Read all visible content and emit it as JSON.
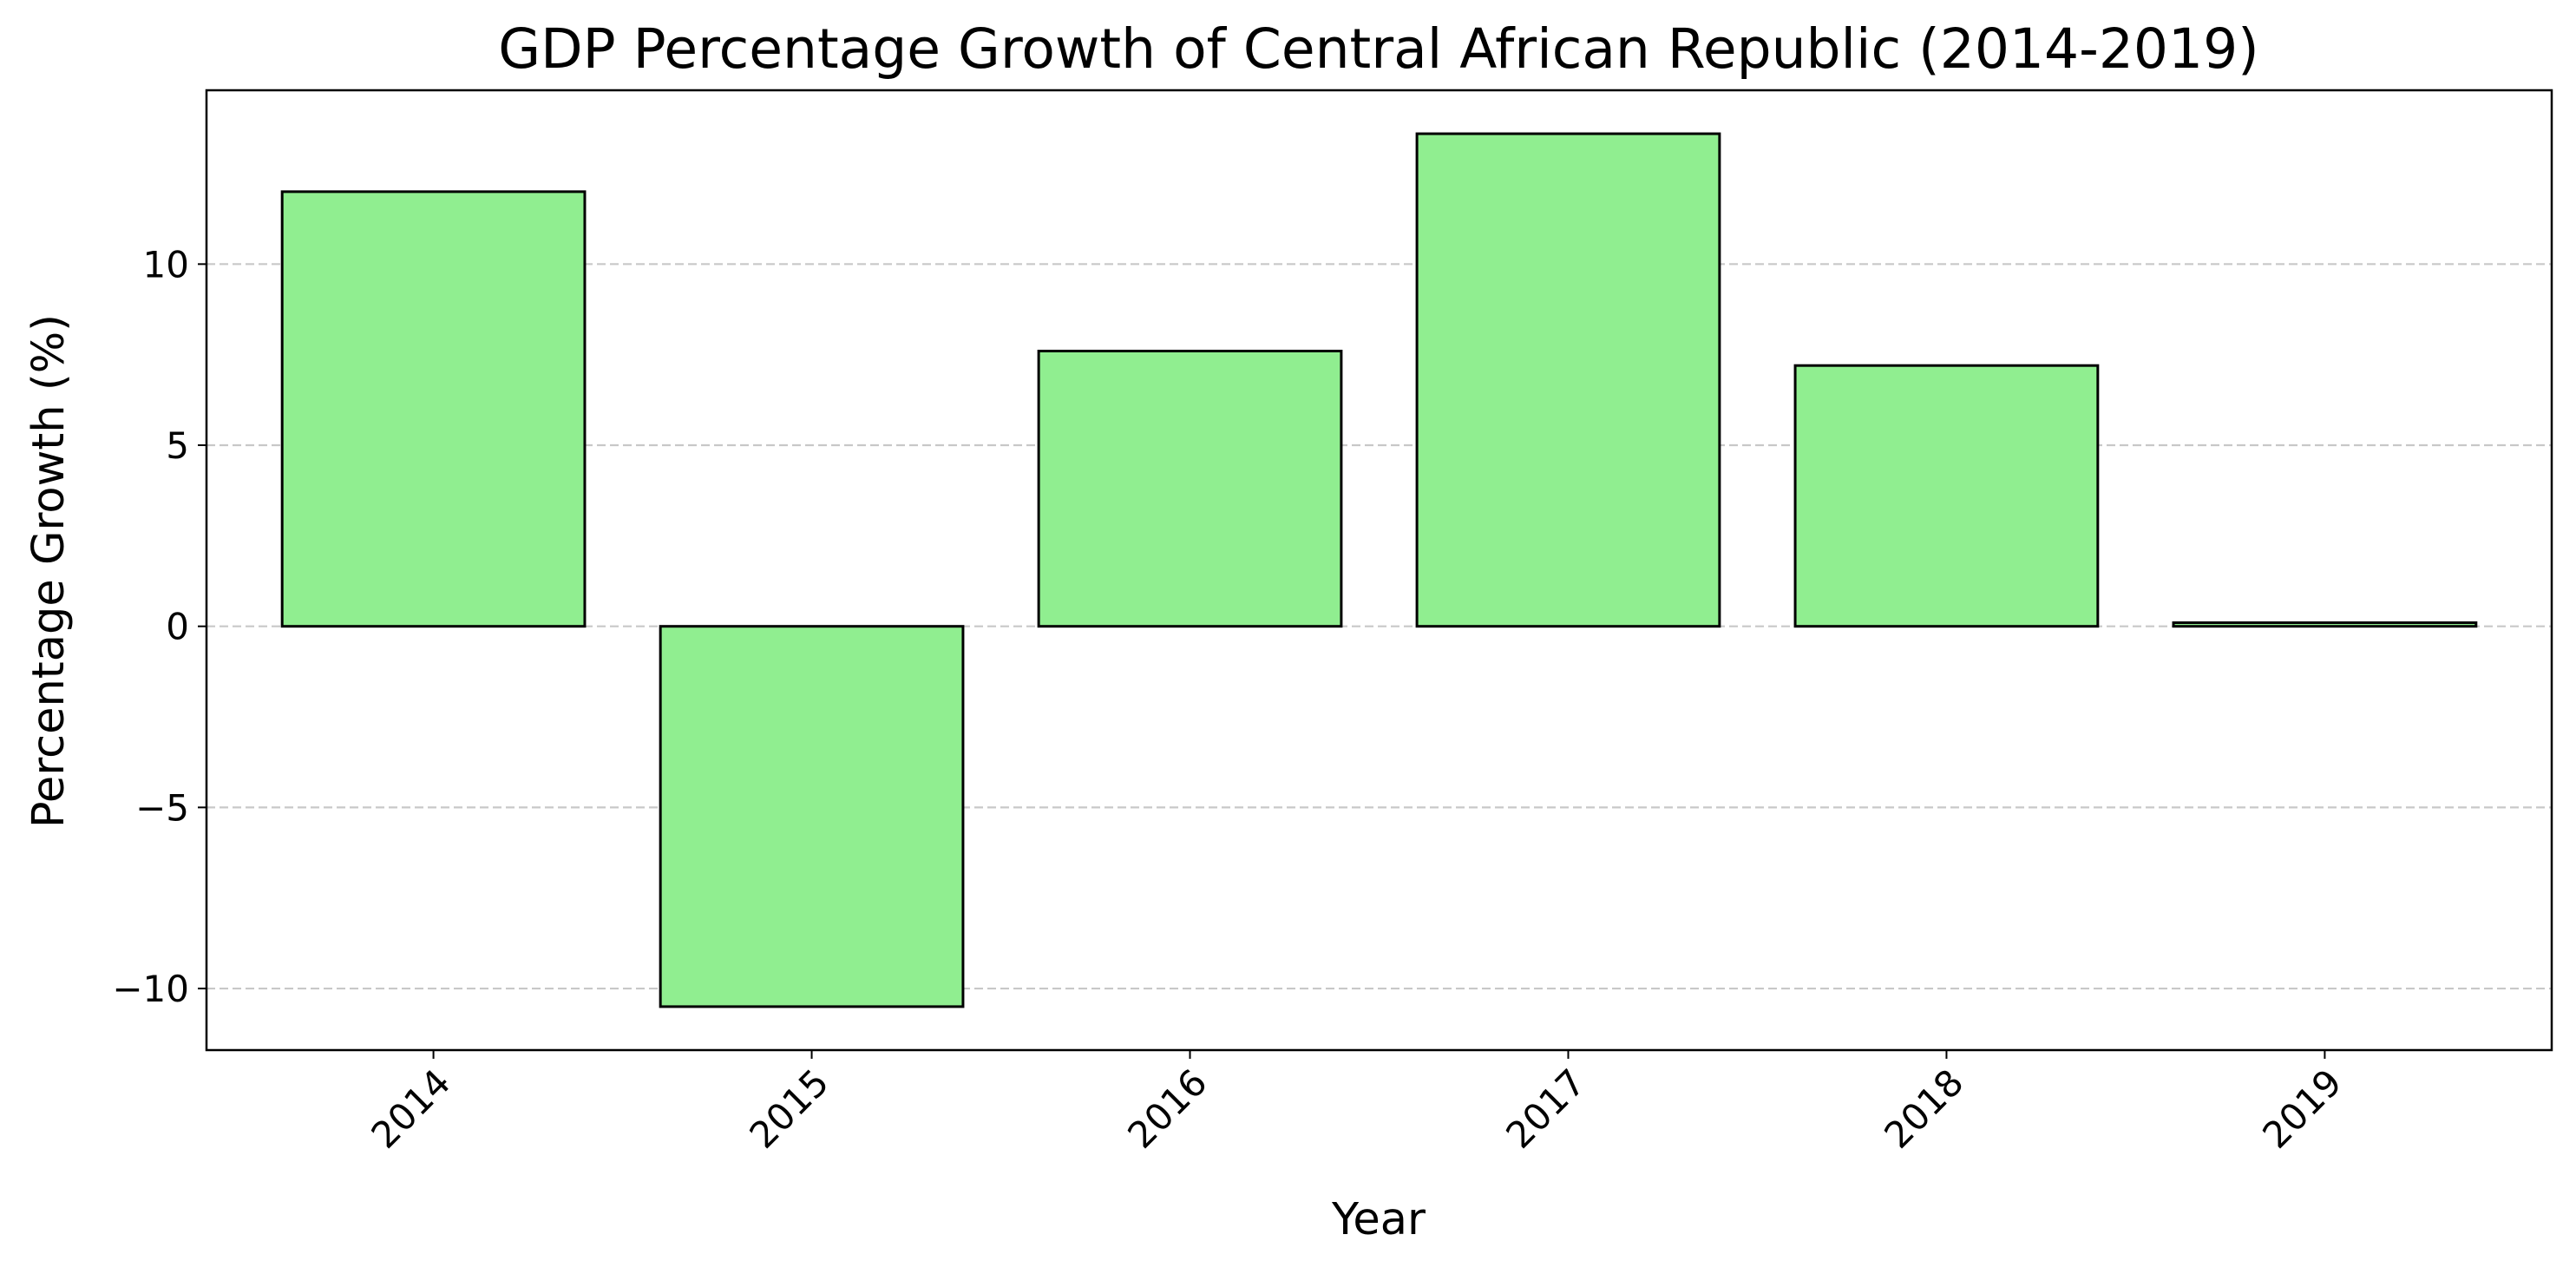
{
  "chart_data": {
    "type": "bar",
    "title": "GDP Percentage Growth of Central African Republic (2014-2019)",
    "xlabel": "Year",
    "ylabel": "Percentage Growth (%)",
    "categories": [
      "2014",
      "2015",
      "2016",
      "2017",
      "2018",
      "2019"
    ],
    "values": [
      12.0,
      -10.5,
      7.6,
      13.6,
      7.2,
      0.1
    ],
    "ylim": [
      -11.7,
      14.8
    ],
    "yticks": [
      -10,
      -5,
      0,
      5,
      10
    ],
    "ytick_labels": [
      "−10",
      "−5",
      "0",
      "5",
      "10"
    ],
    "grid": "y-dashed",
    "legend": "none",
    "bar_color": "#90ee90",
    "edge_color": "#000000",
    "grid_color": "#c8c8c8"
  }
}
